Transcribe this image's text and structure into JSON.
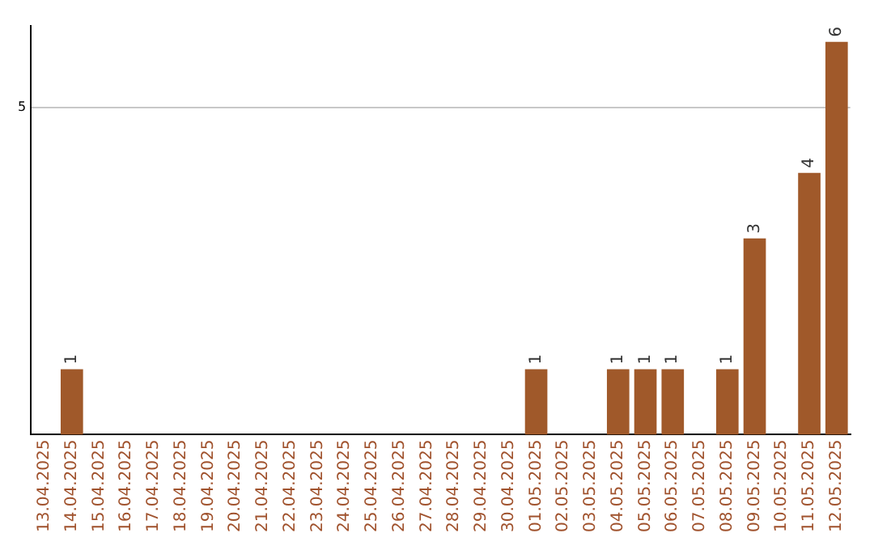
{
  "chart_data": {
    "type": "bar",
    "categories": [
      "13.04.2025",
      "14.04.2025",
      "15.04.2025",
      "16.04.2025",
      "17.04.2025",
      "18.04.2025",
      "19.04.2025",
      "20.04.2025",
      "21.04.2025",
      "22.04.2025",
      "23.04.2025",
      "24.04.2025",
      "25.04.2025",
      "26.04.2025",
      "27.04.2025",
      "28.04.2025",
      "29.04.2025",
      "30.04.2025",
      "01.05.2025",
      "02.05.2025",
      "03.05.2025",
      "04.05.2025",
      "05.05.2025",
      "06.05.2025",
      "07.05.2025",
      "08.05.2025",
      "09.05.2025",
      "10.05.2025",
      "11.05.2025",
      "12.05.2025"
    ],
    "values": [
      0,
      1,
      0,
      0,
      0,
      0,
      0,
      0,
      0,
      0,
      0,
      0,
      0,
      0,
      0,
      0,
      0,
      0,
      1,
      0,
      0,
      1,
      1,
      1,
      0,
      1,
      3,
      0,
      4,
      6
    ],
    "value_labels": [
      null,
      "1",
      null,
      null,
      null,
      null,
      null,
      null,
      null,
      null,
      null,
      null,
      null,
      null,
      null,
      null,
      null,
      null,
      "1",
      null,
      null,
      "1",
      "1",
      "1",
      null,
      "1",
      "3",
      null,
      "4",
      "6"
    ],
    "color": "#a0592a",
    "ylim": [
      0,
      6.25
    ],
    "yticks": [
      5
    ],
    "grid": "y",
    "legend": false
  }
}
